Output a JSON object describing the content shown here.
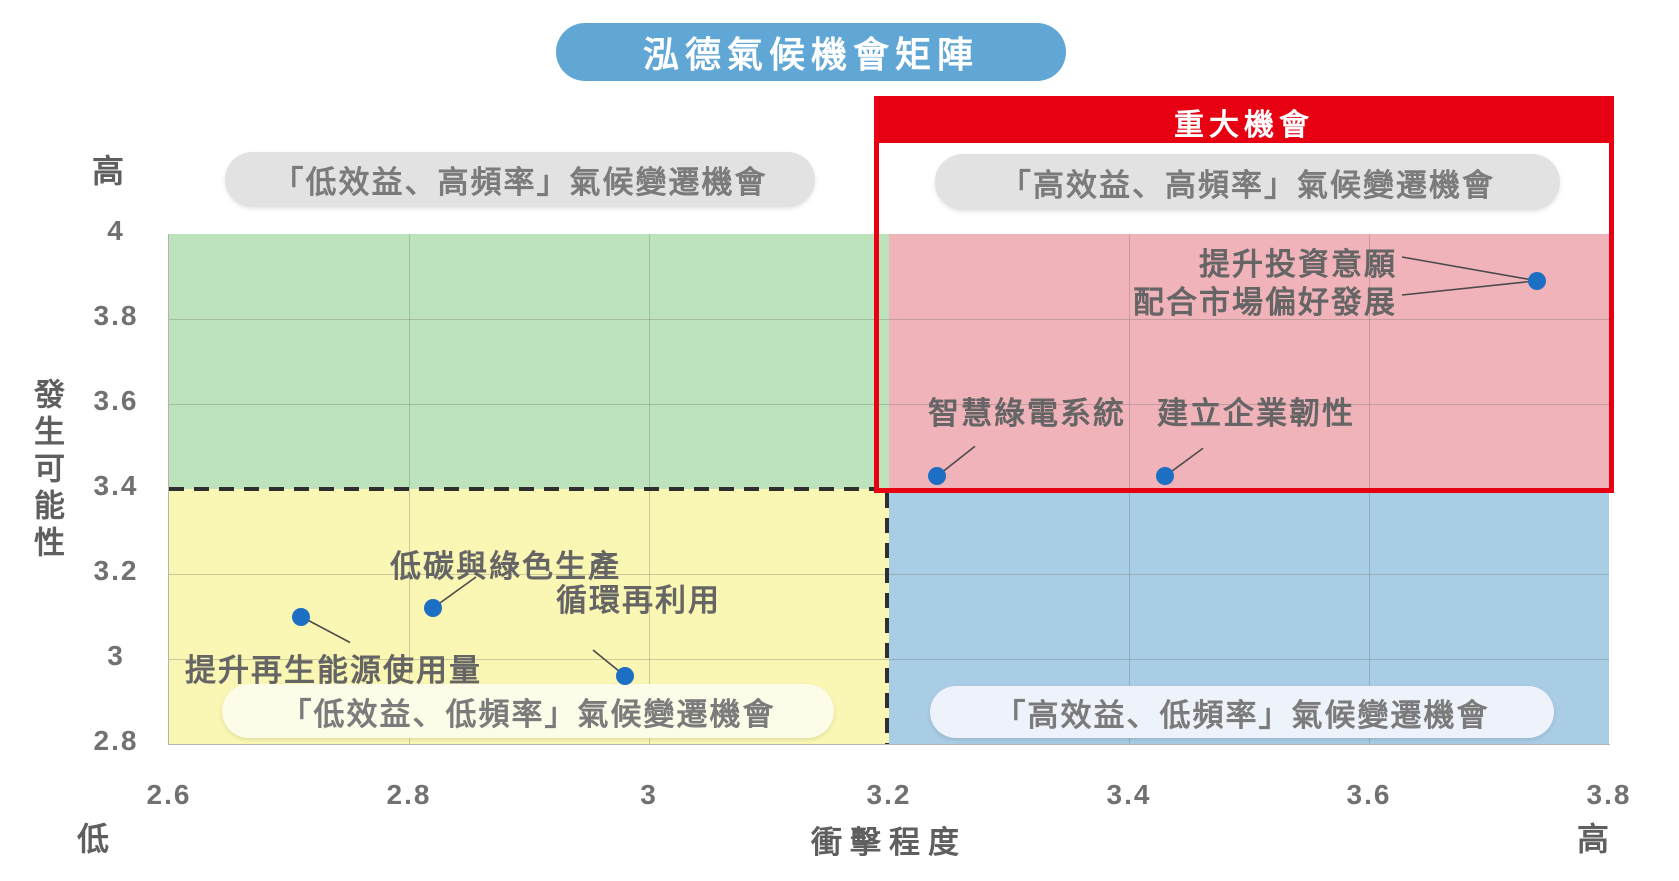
{
  "title": "泓德氣候機會矩陣",
  "banner": "重大機會",
  "axes": {
    "x_title": "衝擊程度",
    "y_title": "發生可能性",
    "x_low": "低",
    "x_high": "高",
    "y_high": "高"
  },
  "colors": {
    "title_pill_blue": "#61a7d5",
    "highlight_red": "#e60012",
    "quadrant_top_left_green": "#bce3bb",
    "quadrant_top_right_pink": "#f0b3ba",
    "quadrant_bottom_left_yellow": "#faf6b3",
    "quadrant_bottom_right_blue": "#a9cde5",
    "point_blue": "#1c6fc2",
    "pill_gray": "#e2e2e2",
    "pill_cream": "#fdfce9",
    "pill_light_blue": "#eef2fb"
  },
  "chart_data": {
    "type": "scatter",
    "title": "泓德氣候機會矩陣",
    "xlabel": "衝擊程度",
    "ylabel": "發生可能性",
    "xlim": [
      2.6,
      3.8
    ],
    "ylim": [
      2.8,
      4.0
    ],
    "x_tick_values": [
      2.6,
      2.8,
      3.0,
      3.2,
      3.4,
      3.6,
      3.8
    ],
    "x_tick_labels": [
      "2.6",
      "2.8",
      "3",
      "3.2",
      "3.4",
      "3.6",
      "3.8"
    ],
    "y_tick_values": [
      4.0,
      3.8,
      3.6,
      3.4,
      3.2,
      3.0,
      2.8
    ],
    "y_tick_labels": [
      "4",
      "3.8",
      "3.6",
      "3.4",
      "3.2",
      "3",
      "2.8"
    ],
    "grid": true,
    "quadrant_boundary": {
      "x": 3.2,
      "y": 3.4
    },
    "quadrants": [
      {
        "position": "top-left",
        "label": "「低效益、高頻率」氣候變遷機會"
      },
      {
        "position": "top-right",
        "label": "「高效益、高頻率」氣候變遷機會",
        "banner": "重大機會"
      },
      {
        "position": "bottom-left",
        "label": "「低效益、低頻率」氣候變遷機會"
      },
      {
        "position": "bottom-right",
        "label": "「高效益、低頻率」氣候變遷機會"
      }
    ],
    "points": [
      {
        "label": "提升再生能源使用量",
        "x": 2.71,
        "y": 3.1
      },
      {
        "label": "低碳與綠色生產",
        "x": 2.82,
        "y": 3.12
      },
      {
        "label": "循環再利用",
        "x": 2.98,
        "y": 2.96
      },
      {
        "label": "智慧綠電系統",
        "x": 3.24,
        "y": 3.43
      },
      {
        "label": "建立企業韌性",
        "x": 3.43,
        "y": 3.43
      },
      {
        "label": "提升投資意願 配合市場偏好發展",
        "label_lines": [
          "提升投資意願",
          "配合市場偏好發展"
        ],
        "x": 3.74,
        "y": 3.89
      }
    ]
  }
}
